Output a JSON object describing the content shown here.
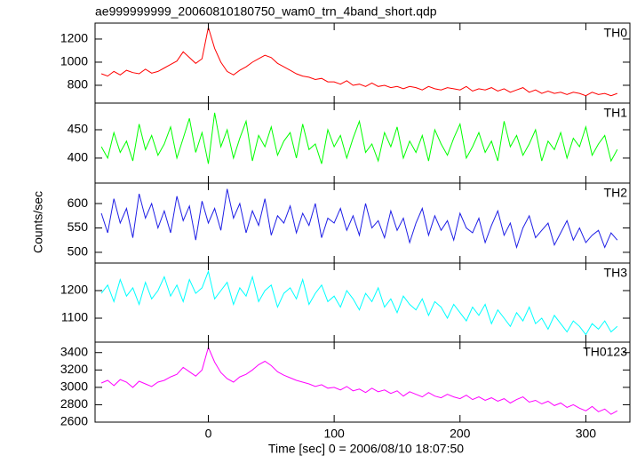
{
  "chart_data": [
    {
      "type": "line",
      "title": "ae999999999_20060810180750_wam0_trn_4band_short.qdp",
      "label": "TH0",
      "x": [
        -85,
        -80,
        -75,
        -70,
        -65,
        -60,
        -55,
        -50,
        -45,
        -40,
        -35,
        -30,
        -25,
        -20,
        -15,
        -10,
        -5,
        0,
        5,
        10,
        15,
        20,
        25,
        30,
        35,
        40,
        45,
        50,
        55,
        60,
        65,
        70,
        75,
        80,
        85,
        90,
        95,
        100,
        105,
        110,
        115,
        120,
        125,
        130,
        135,
        140,
        145,
        150,
        155,
        160,
        165,
        170,
        175,
        180,
        185,
        190,
        195,
        200,
        205,
        210,
        215,
        220,
        225,
        230,
        235,
        240,
        245,
        250,
        255,
        260,
        265,
        270,
        275,
        280,
        285,
        290,
        295,
        300,
        305,
        310,
        315,
        320,
        325
      ],
      "series": [
        {
          "color": "#ff0000",
          "values": [
            900,
            880,
            920,
            890,
            930,
            910,
            900,
            940,
            905,
            920,
            950,
            980,
            1010,
            1090,
            1040,
            990,
            1030,
            1300,
            1120,
            1000,
            920,
            890,
            930,
            960,
            1000,
            1030,
            1060,
            1040,
            990,
            960,
            930,
            900,
            880,
            870,
            850,
            860,
            830,
            830,
            810,
            840,
            800,
            810,
            790,
            820,
            790,
            800,
            780,
            790,
            770,
            790,
            780,
            760,
            790,
            770,
            760,
            780,
            770,
            760,
            790,
            750,
            770,
            760,
            780,
            750,
            770,
            740,
            760,
            780,
            740,
            760,
            730,
            750,
            730,
            740,
            720,
            740,
            730,
            710,
            740,
            720,
            730,
            710,
            730
          ]
        }
      ],
      "xlim": [
        -90,
        335
      ],
      "xticks": [
        0,
        100,
        200,
        300
      ],
      "ylim": [
        646,
        1338
      ],
      "yticks": [
        800,
        1000,
        1200
      ]
    },
    {
      "type": "line",
      "label": "TH1",
      "x": [
        -85,
        -80,
        -75,
        -70,
        -65,
        -60,
        -55,
        -50,
        -45,
        -40,
        -35,
        -30,
        -25,
        -20,
        -15,
        -10,
        -5,
        0,
        5,
        10,
        15,
        20,
        25,
        30,
        35,
        40,
        45,
        50,
        55,
        60,
        65,
        70,
        75,
        80,
        85,
        90,
        95,
        100,
        105,
        110,
        115,
        120,
        125,
        130,
        135,
        140,
        145,
        150,
        155,
        160,
        165,
        170,
        175,
        180,
        185,
        190,
        195,
        200,
        205,
        210,
        215,
        220,
        225,
        230,
        235,
        240,
        245,
        250,
        255,
        260,
        265,
        270,
        275,
        280,
        285,
        290,
        295,
        300,
        305,
        310,
        315,
        320,
        325
      ],
      "series": [
        {
          "color": "#00ff00",
          "values": [
            420,
            400,
            445,
            410,
            430,
            395,
            460,
            415,
            440,
            405,
            425,
            455,
            400,
            435,
            470,
            410,
            445,
            390,
            480,
            420,
            450,
            400,
            435,
            465,
            395,
            440,
            420,
            455,
            405,
            430,
            445,
            400,
            460,
            415,
            425,
            390,
            450,
            420,
            440,
            400,
            435,
            465,
            410,
            425,
            395,
            445,
            420,
            455,
            400,
            430,
            410,
            440,
            395,
            450,
            425,
            405,
            435,
            460,
            400,
            420,
            445,
            410,
            430,
            395,
            465,
            420,
            440,
            405,
            425,
            450,
            395,
            430,
            415,
            445,
            400,
            435,
            420,
            455,
            405,
            425,
            440,
            395,
            415
          ]
        }
      ],
      "xlim": [
        -90,
        335
      ],
      "xticks": [
        0,
        100,
        200,
        300
      ],
      "ylim": [
        356,
        497
      ],
      "yticks": [
        400,
        450
      ]
    },
    {
      "type": "line",
      "label": "TH2",
      "ylabel": "Counts/sec",
      "x": [
        -85,
        -80,
        -75,
        -70,
        -65,
        -60,
        -55,
        -50,
        -45,
        -40,
        -35,
        -30,
        -25,
        -20,
        -15,
        -10,
        -5,
        0,
        5,
        10,
        15,
        20,
        25,
        30,
        35,
        40,
        45,
        50,
        55,
        60,
        65,
        70,
        75,
        80,
        85,
        90,
        95,
        100,
        105,
        110,
        115,
        120,
        125,
        130,
        135,
        140,
        145,
        150,
        155,
        160,
        165,
        170,
        175,
        180,
        185,
        190,
        195,
        200,
        205,
        210,
        215,
        220,
        225,
        230,
        235,
        240,
        245,
        250,
        255,
        260,
        265,
        270,
        275,
        280,
        285,
        290,
        295,
        300,
        305,
        310,
        315,
        320,
        325
      ],
      "series": [
        {
          "color": "#1f1fe6",
          "values": [
            580,
            540,
            610,
            560,
            590,
            530,
            620,
            570,
            600,
            550,
            585,
            540,
            615,
            565,
            595,
            525,
            605,
            560,
            590,
            545,
            630,
            570,
            600,
            540,
            585,
            555,
            610,
            535,
            575,
            560,
            595,
            540,
            580,
            555,
            600,
            530,
            570,
            560,
            590,
            545,
            575,
            535,
            600,
            550,
            565,
            530,
            585,
            545,
            570,
            520,
            560,
            590,
            535,
            575,
            545,
            565,
            525,
            580,
            550,
            540,
            570,
            520,
            555,
            585,
            535,
            560,
            510,
            550,
            575,
            530,
            545,
            560,
            515,
            540,
            565,
            525,
            550,
            520,
            535,
            545,
            510,
            540,
            525
          ]
        }
      ],
      "xlim": [
        -90,
        335
      ],
      "xticks": [
        0,
        100,
        200,
        300
      ],
      "ylim": [
        478,
        642
      ],
      "yticks": [
        500,
        550,
        600
      ]
    },
    {
      "type": "line",
      "label": "TH3",
      "x": [
        -85,
        -80,
        -75,
        -70,
        -65,
        -60,
        -55,
        -50,
        -45,
        -40,
        -35,
        -30,
        -25,
        -20,
        -15,
        -10,
        -5,
        0,
        5,
        10,
        15,
        20,
        25,
        30,
        35,
        40,
        45,
        50,
        55,
        60,
        65,
        70,
        75,
        80,
        85,
        90,
        95,
        100,
        105,
        110,
        115,
        120,
        125,
        130,
        135,
        140,
        145,
        150,
        155,
        160,
        165,
        170,
        175,
        180,
        185,
        190,
        195,
        200,
        205,
        210,
        215,
        220,
        225,
        230,
        235,
        240,
        245,
        250,
        255,
        260,
        265,
        270,
        275,
        280,
        285,
        290,
        295,
        300,
        305,
        310,
        315,
        320,
        325
      ],
      "series": [
        {
          "color": "#00ffff",
          "values": [
            1190,
            1220,
            1160,
            1240,
            1180,
            1210,
            1150,
            1230,
            1170,
            1200,
            1250,
            1180,
            1220,
            1160,
            1240,
            1190,
            1210,
            1270,
            1170,
            1200,
            1230,
            1150,
            1210,
            1180,
            1250,
            1160,
            1200,
            1220,
            1140,
            1190,
            1210,
            1170,
            1240,
            1150,
            1190,
            1220,
            1160,
            1180,
            1140,
            1200,
            1170,
            1130,
            1190,
            1160,
            1210,
            1140,
            1170,
            1120,
            1180,
            1150,
            1130,
            1170,
            1110,
            1160,
            1140,
            1100,
            1150,
            1120,
            1090,
            1140,
            1110,
            1150,
            1080,
            1130,
            1100,
            1070,
            1120,
            1090,
            1140,
            1080,
            1100,
            1060,
            1110,
            1080,
            1050,
            1090,
            1070,
            1040,
            1080,
            1060,
            1090,
            1050,
            1070
          ]
        }
      ],
      "xlim": [
        -90,
        335
      ],
      "xticks": [
        0,
        100,
        200,
        300
      ],
      "ylim": [
        1013,
        1300
      ],
      "yticks": [
        1100,
        1200
      ]
    },
    {
      "type": "line",
      "label": "TH0123",
      "xlabel": "Time [sec] 0 = 2006/08/10 18:07:50",
      "x": [
        -85,
        -80,
        -75,
        -70,
        -65,
        -60,
        -55,
        -50,
        -45,
        -40,
        -35,
        -30,
        -25,
        -20,
        -15,
        -10,
        -5,
        0,
        5,
        10,
        15,
        20,
        25,
        30,
        35,
        40,
        45,
        50,
        55,
        60,
        65,
        70,
        75,
        80,
        85,
        90,
        95,
        100,
        105,
        110,
        115,
        120,
        125,
        130,
        135,
        140,
        145,
        150,
        155,
        160,
        165,
        170,
        175,
        180,
        185,
        190,
        195,
        200,
        205,
        210,
        215,
        220,
        225,
        230,
        235,
        240,
        245,
        250,
        255,
        260,
        265,
        270,
        275,
        280,
        285,
        290,
        295,
        300,
        305,
        310,
        315,
        320,
        325
      ],
      "series": [
        {
          "color": "#ff00ff",
          "values": [
            3050,
            3080,
            3020,
            3090,
            3060,
            3000,
            3070,
            3040,
            3010,
            3060,
            3080,
            3120,
            3150,
            3230,
            3180,
            3130,
            3200,
            3460,
            3290,
            3170,
            3100,
            3060,
            3120,
            3150,
            3200,
            3260,
            3300,
            3250,
            3180,
            3140,
            3110,
            3080,
            3060,
            3040,
            3010,
            3030,
            2990,
            3000,
            2970,
            3010,
            2960,
            2980,
            2940,
            2990,
            2950,
            2970,
            2930,
            2960,
            2900,
            2950,
            2920,
            2890,
            2940,
            2900,
            2880,
            2920,
            2890,
            2870,
            2910,
            2860,
            2890,
            2850,
            2880,
            2840,
            2870,
            2820,
            2860,
            2890,
            2830,
            2850,
            2810,
            2840,
            2790,
            2820,
            2770,
            2800,
            2760,
            2730,
            2780,
            2720,
            2750,
            2690,
            2730
          ]
        }
      ],
      "xlim": [
        -90,
        335
      ],
      "xticks": [
        0,
        100,
        200,
        300
      ],
      "ylim": [
        2600,
        3520
      ],
      "yticks": [
        2600,
        2800,
        3000,
        3200,
        3400
      ]
    }
  ]
}
